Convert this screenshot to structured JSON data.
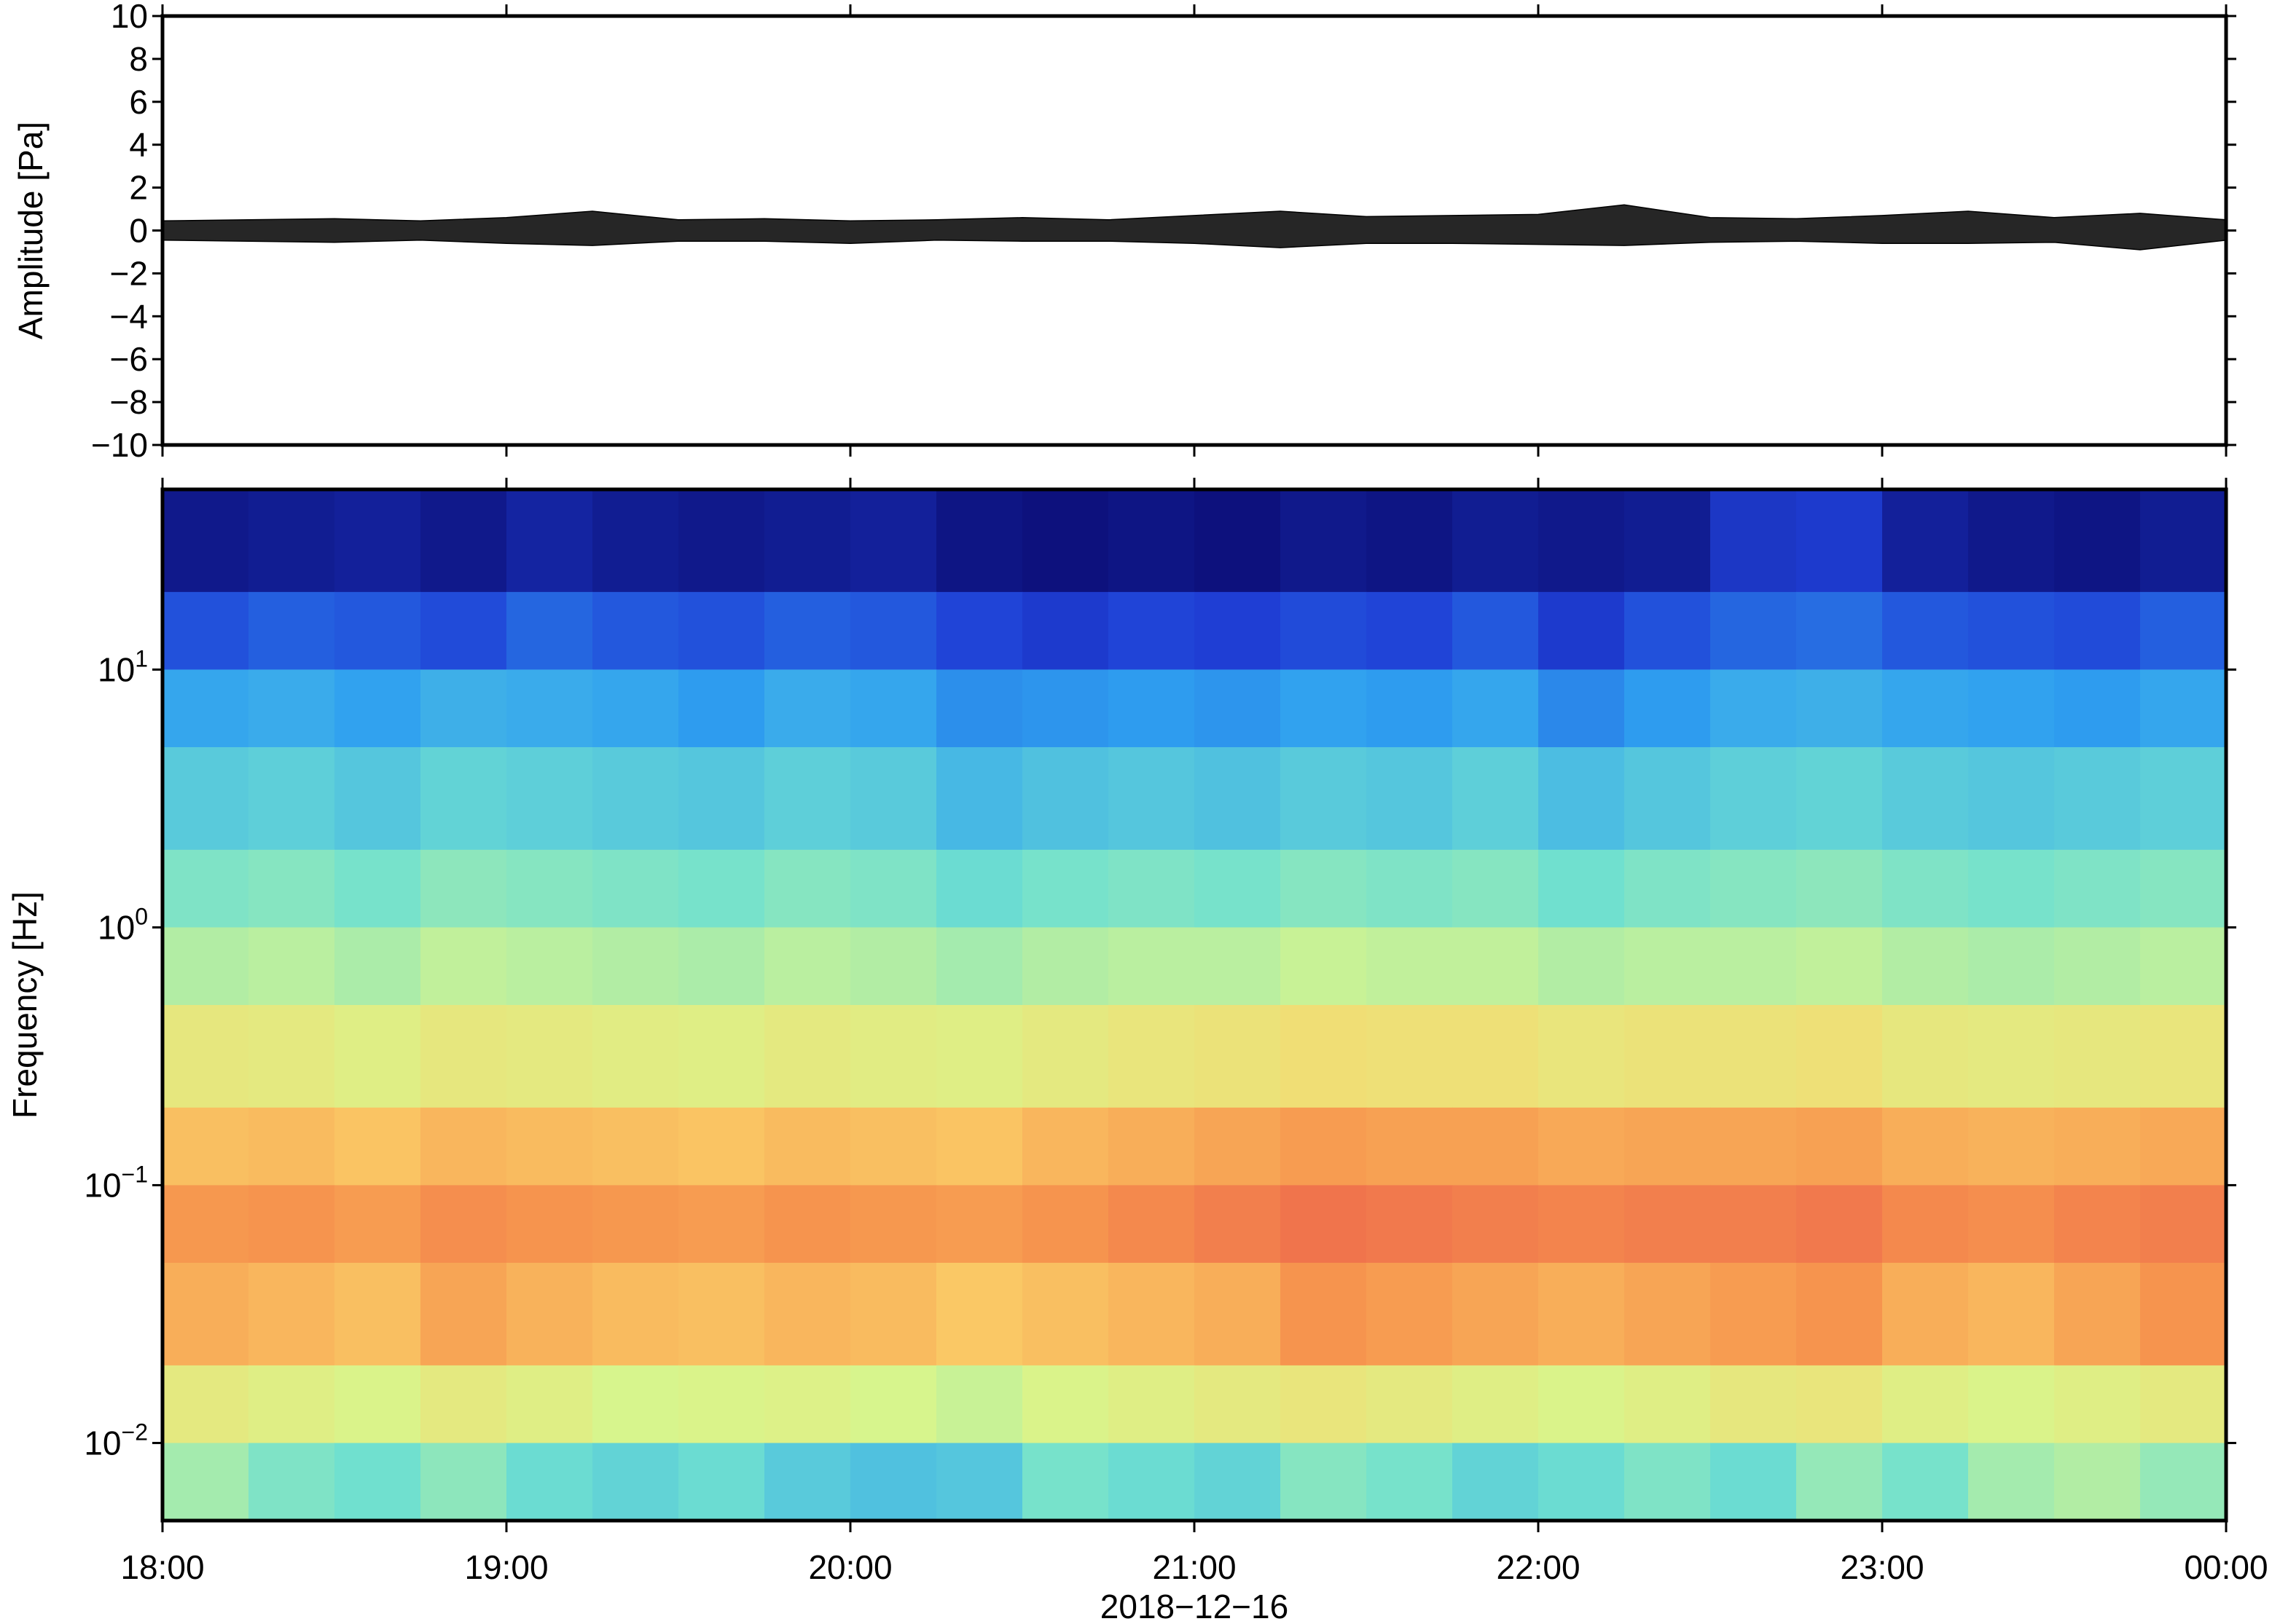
{
  "chart_data": [
    {
      "type": "envelope",
      "ylabel": "Amplitude [Pa]",
      "ylim": [
        -10,
        10
      ],
      "yticks": [
        {
          "value": -10,
          "label": "−10"
        },
        {
          "value": -8,
          "label": "−8"
        },
        {
          "value": -6,
          "label": "−6"
        },
        {
          "value": -4,
          "label": "−4"
        },
        {
          "value": -2,
          "label": "−2"
        },
        0,
        2,
        4,
        6,
        8,
        10
      ],
      "xlim": [
        18,
        24
      ],
      "xticks": [
        18,
        19,
        20,
        21,
        22,
        23,
        24
      ],
      "color": "#000000",
      "x": [
        18,
        18.25,
        18.5,
        18.75,
        19,
        19.25,
        19.5,
        19.75,
        20,
        20.25,
        20.5,
        20.75,
        21,
        21.25,
        21.5,
        21.75,
        22,
        22.25,
        22.5,
        22.75,
        23,
        23.25,
        23.5,
        23.75,
        24
      ],
      "upper": [
        0.45,
        0.5,
        0.55,
        0.45,
        0.6,
        0.9,
        0.5,
        0.55,
        0.45,
        0.5,
        0.6,
        0.5,
        0.7,
        0.9,
        0.65,
        0.7,
        0.75,
        1.2,
        0.6,
        0.55,
        0.7,
        0.9,
        0.6,
        0.8,
        0.5
      ],
      "lower": [
        -0.45,
        -0.5,
        -0.55,
        -0.45,
        -0.6,
        -0.7,
        -0.5,
        -0.5,
        -0.6,
        -0.45,
        -0.5,
        -0.5,
        -0.6,
        -0.8,
        -0.6,
        -0.6,
        -0.65,
        -0.7,
        -0.55,
        -0.5,
        -0.6,
        -0.6,
        -0.55,
        -0.9,
        -0.45
      ]
    },
    {
      "type": "heatmap",
      "ylabel": "Frequency [Hz]",
      "xlabel": "2018−12−16",
      "log_y": true,
      "ylim": [
        0.005,
        50
      ],
      "yticks": [
        {
          "value": 10,
          "label": "10",
          "exponent": "1"
        },
        {
          "value": 1,
          "label": "10",
          "exponent": "0"
        },
        {
          "value": 0.1,
          "label": "10",
          "exponent": "−1"
        },
        {
          "value": 0.01,
          "label": "10",
          "exponent": "−2"
        }
      ],
      "xlim": [
        18,
        24
      ],
      "xticks": [
        {
          "value": 18,
          "label": "18:00"
        },
        {
          "value": 19,
          "label": "19:00"
        },
        {
          "value": 20,
          "label": "20:00"
        },
        {
          "value": 21,
          "label": "21:00"
        },
        {
          "value": 22,
          "label": "22:00"
        },
        {
          "value": 23,
          "label": "23:00"
        },
        {
          "value": 24,
          "label": "00:00"
        }
      ],
      "colormap": [
        "#0a0a6e",
        "#1f3fd6",
        "#2fa0f0",
        "#6fe0d0",
        "#d8f58c",
        "#fbd36a",
        "#f6954e",
        "#e84a4a"
      ],
      "xbins": [
        18,
        18.25,
        18.5,
        18.75,
        19,
        19.25,
        19.5,
        19.75,
        20,
        20.25,
        20.5,
        20.75,
        21,
        21.25,
        21.5,
        21.75,
        22,
        22.25,
        22.5,
        22.75,
        23,
        23.25,
        23.5,
        23.75,
        24
      ],
      "ybins": [
        50,
        20,
        10,
        5,
        2,
        1,
        0.5,
        0.2,
        0.1,
        0.05,
        0.02,
        0.01,
        0.005
      ],
      "values": [
        [
          0.04,
          0.05,
          0.06,
          0.04,
          0.07,
          0.05,
          0.04,
          0.05,
          0.06,
          0.03,
          0.02,
          0.03,
          0.02,
          0.04,
          0.03,
          0.05,
          0.04,
          0.05,
          0.12,
          0.13,
          0.06,
          0.04,
          0.03,
          0.05
        ],
        [
          0.17,
          0.19,
          0.18,
          0.16,
          0.2,
          0.18,
          0.17,
          0.19,
          0.18,
          0.15,
          0.13,
          0.15,
          0.14,
          0.16,
          0.15,
          0.18,
          0.13,
          0.17,
          0.2,
          0.21,
          0.18,
          0.17,
          0.16,
          0.19
        ],
        [
          0.3,
          0.31,
          0.29,
          0.32,
          0.31,
          0.3,
          0.28,
          0.31,
          0.3,
          0.26,
          0.27,
          0.28,
          0.27,
          0.29,
          0.28,
          0.3,
          0.25,
          0.28,
          0.31,
          0.32,
          0.3,
          0.29,
          0.28,
          0.3
        ],
        [
          0.38,
          0.39,
          0.37,
          0.4,
          0.39,
          0.38,
          0.37,
          0.39,
          0.38,
          0.34,
          0.36,
          0.37,
          0.36,
          0.38,
          0.37,
          0.39,
          0.35,
          0.37,
          0.39,
          0.4,
          0.38,
          0.37,
          0.38,
          0.39
        ],
        [
          0.45,
          0.46,
          0.44,
          0.47,
          0.46,
          0.45,
          0.44,
          0.46,
          0.45,
          0.42,
          0.44,
          0.45,
          0.44,
          0.46,
          0.45,
          0.46,
          0.43,
          0.45,
          0.46,
          0.47,
          0.45,
          0.44,
          0.45,
          0.46
        ],
        [
          0.52,
          0.53,
          0.51,
          0.54,
          0.53,
          0.52,
          0.51,
          0.53,
          0.52,
          0.5,
          0.52,
          0.53,
          0.53,
          0.55,
          0.54,
          0.54,
          0.52,
          0.53,
          0.53,
          0.54,
          0.52,
          0.51,
          0.52,
          0.53
        ],
        [
          0.63,
          0.62,
          0.6,
          0.63,
          0.62,
          0.61,
          0.6,
          0.62,
          0.61,
          0.6,
          0.62,
          0.64,
          0.65,
          0.67,
          0.66,
          0.66,
          0.64,
          0.65,
          0.65,
          0.66,
          0.63,
          0.62,
          0.63,
          0.64
        ],
        [
          0.76,
          0.77,
          0.75,
          0.78,
          0.77,
          0.76,
          0.75,
          0.77,
          0.76,
          0.75,
          0.78,
          0.8,
          0.82,
          0.84,
          0.83,
          0.83,
          0.81,
          0.82,
          0.82,
          0.83,
          0.8,
          0.79,
          0.8,
          0.81
        ],
        [
          0.85,
          0.86,
          0.84,
          0.87,
          0.86,
          0.85,
          0.84,
          0.86,
          0.85,
          0.84,
          0.86,
          0.88,
          0.9,
          0.92,
          0.91,
          0.9,
          0.89,
          0.9,
          0.9,
          0.91,
          0.88,
          0.87,
          0.89,
          0.9
        ],
        [
          0.8,
          0.78,
          0.76,
          0.82,
          0.79,
          0.77,
          0.76,
          0.78,
          0.77,
          0.74,
          0.76,
          0.78,
          0.8,
          0.86,
          0.84,
          0.82,
          0.8,
          0.82,
          0.84,
          0.86,
          0.8,
          0.78,
          0.82,
          0.86
        ],
        [
          0.62,
          0.6,
          0.58,
          0.62,
          0.6,
          0.57,
          0.58,
          0.59,
          0.57,
          0.55,
          0.58,
          0.6,
          0.62,
          0.64,
          0.62,
          0.6,
          0.58,
          0.6,
          0.63,
          0.64,
          0.6,
          0.58,
          0.6,
          0.62
        ],
        [
          0.5,
          0.45,
          0.43,
          0.47,
          0.42,
          0.4,
          0.42,
          0.38,
          0.36,
          0.37,
          0.44,
          0.42,
          0.4,
          0.46,
          0.44,
          0.4,
          0.42,
          0.45,
          0.42,
          0.48,
          0.44,
          0.5,
          0.52,
          0.48
        ]
      ]
    }
  ]
}
